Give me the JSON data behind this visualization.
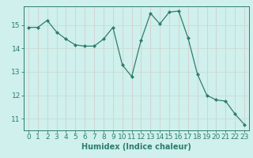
{
  "x": [
    0,
    1,
    2,
    3,
    4,
    5,
    6,
    7,
    8,
    9,
    10,
    11,
    12,
    13,
    14,
    15,
    16,
    17,
    18,
    19,
    20,
    21,
    22,
    23
  ],
  "y": [
    14.9,
    14.9,
    15.2,
    14.7,
    14.4,
    14.15,
    14.1,
    14.1,
    14.4,
    14.9,
    13.3,
    12.8,
    14.35,
    15.5,
    15.05,
    15.55,
    15.6,
    14.45,
    12.9,
    12.0,
    11.8,
    11.75,
    11.2,
    10.75
  ],
  "line_color": "#2e7d6e",
  "marker": "D",
  "marker_size": 2.0,
  "bg_color": "#cff0ec",
  "grid_color_major": "#b8ddd8",
  "grid_color_minor": "#daeee8",
  "xlabel": "Humidex (Indice chaleur)",
  "ylim": [
    10.5,
    15.8
  ],
  "xlim": [
    -0.5,
    23.5
  ],
  "yticks": [
    11,
    12,
    13,
    14,
    15
  ],
  "xticks": [
    0,
    1,
    2,
    3,
    4,
    5,
    6,
    7,
    8,
    9,
    10,
    11,
    12,
    13,
    14,
    15,
    16,
    17,
    18,
    19,
    20,
    21,
    22,
    23
  ],
  "label_fontsize": 7,
  "tick_fontsize": 6.5
}
